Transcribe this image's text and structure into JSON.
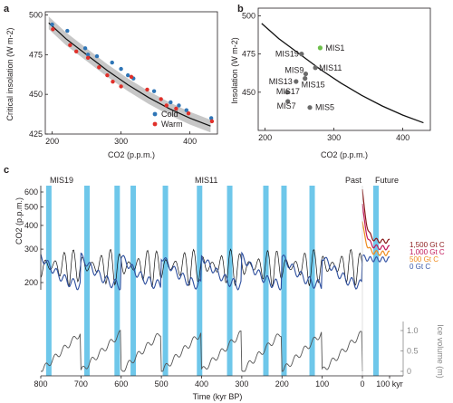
{
  "chart_data": [
    {
      "panel": "a",
      "type": "scatter",
      "xlabel": "CO2 (p.p.m.)",
      "ylabel": "Critical insolation (W m-2)",
      "xlim": [
        190,
        440
      ],
      "ylim": [
        425,
        502
      ],
      "xticks": [
        "200",
        "300",
        "400"
      ],
      "yticks": [
        "425",
        "450",
        "475",
        "500"
      ],
      "legend": "bottom-right",
      "fit_curve": {
        "x": [
          195,
          220,
          250,
          280,
          310,
          340,
          370,
          400,
          430
        ],
        "y": [
          495,
          485,
          475,
          465,
          456,
          448,
          441,
          435,
          430
        ]
      },
      "series": [
        {
          "name": "Cold",
          "color": "#2e75b6",
          "points": [
            [
              200,
              494
            ],
            [
              222,
              490
            ],
            [
              248,
              479
            ],
            [
              252,
              475
            ],
            [
              265,
              474
            ],
            [
              287,
              470
            ],
            [
              300,
              466
            ],
            [
              310,
              462
            ],
            [
              318,
              460
            ],
            [
              348,
              452
            ],
            [
              372,
              445
            ],
            [
              384,
              443
            ],
            [
              395,
              440
            ],
            [
              431,
              435
            ]
          ]
        },
        {
          "name": "Warm",
          "color": "#e0302a",
          "points": [
            [
              201,
              491
            ],
            [
              226,
              481
            ],
            [
              235,
              477
            ],
            [
              252,
              473
            ],
            [
              268,
              467
            ],
            [
              280,
              462
            ],
            [
              288,
              458
            ],
            [
              300,
              455
            ],
            [
              315,
              461
            ],
            [
              338,
              453
            ],
            [
              358,
              447
            ],
            [
              366,
              443
            ],
            [
              380,
              441
            ],
            [
              398,
              438
            ],
            [
              432,
              433
            ]
          ]
        }
      ]
    },
    {
      "panel": "b",
      "type": "scatter",
      "xlabel": "CO2 (p.p.m.)",
      "ylabel": "Insolation (W m-2)",
      "xlim": [
        190,
        440
      ],
      "ylim": [
        425,
        505
      ],
      "xticks": [
        "200",
        "300",
        "400"
      ],
      "yticks": [
        "450",
        "475",
        "500"
      ],
      "boundary_curve": {
        "x": [
          195,
          220,
          250,
          280,
          310,
          340,
          370,
          400,
          430
        ],
        "y": [
          495,
          485,
          475,
          465,
          456,
          448,
          441,
          435,
          430
        ]
      },
      "points": [
        {
          "label": "MIS1",
          "x": 280,
          "y": 479,
          "color": "#6dbf4b"
        },
        {
          "label": "MIS19",
          "x": 253,
          "y": 475,
          "color": "#6b6b6b"
        },
        {
          "label": "MIS11",
          "x": 273,
          "y": 466,
          "color": "#6b6b6b"
        },
        {
          "label": "MIS9",
          "x": 259,
          "y": 462,
          "color": "#6b6b6b"
        },
        {
          "label": "MIS13",
          "x": 245,
          "y": 457,
          "color": "#6b6b6b"
        },
        {
          "label": "MIS15",
          "x": 258,
          "y": 459,
          "color": "#6b6b6b"
        },
        {
          "label": "MIS17",
          "x": 232,
          "y": 450,
          "color": "#6b6b6b"
        },
        {
          "label": "MIS7",
          "x": 233,
          "y": 444,
          "color": "#6b6b6b"
        },
        {
          "label": "MIS5",
          "x": 265,
          "y": 440,
          "color": "#6b6b6b"
        }
      ]
    },
    {
      "panel": "c",
      "type": "line",
      "xlabel": "Time (kyr BP)",
      "xlim": [
        800,
        0
      ],
      "xticks": [
        "800",
        "700",
        "600",
        "500",
        "400",
        "300",
        "200",
        "100",
        "0",
        "100 kyr"
      ],
      "ylabel_top": "CO2 (p.p.m.)",
      "yticks_top": [
        "200",
        "300",
        "400",
        "500",
        "600"
      ],
      "ylabel_bottom": "Ice volume (m)",
      "yticks_bottom": [
        "0",
        "0.5",
        "1.0"
      ],
      "annotations": [
        "MIS19",
        "MIS11",
        "Past",
        "Future"
      ],
      "interglacial_bands_kyr": [
        780,
        685,
        610,
        570,
        490,
        405,
        330,
        240,
        195,
        125
      ],
      "future_band_kyr": 50,
      "future_scenarios": [
        {
          "name": "1,500 Gt C",
          "color": "#8b1a1a",
          "peak": 620,
          "end": 330
        },
        {
          "name": "1,000 Gt C",
          "color": "#c2185b",
          "peak": 520,
          "end": 305
        },
        {
          "name": "500 Gt C",
          "color": "#ef8c1f",
          "peak": 420,
          "end": 285
        },
        {
          "name": "0 Gt C",
          "color": "#3c5aa8",
          "peak": 275,
          "end": 265
        }
      ]
    }
  ]
}
